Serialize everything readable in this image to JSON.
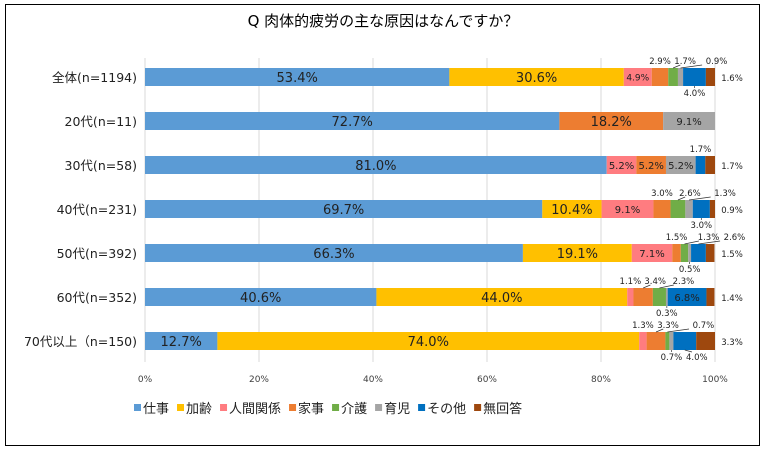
{
  "chart_data": {
    "type": "bar",
    "orientation": "horizontal",
    "stacked": "percent",
    "title": "Q 肉体的疲労の主な原因はなんですか？",
    "categories": [
      "全体(n=1194)",
      "20代(n=11)",
      "30代(n=58)",
      "40代(n=231)",
      "50代(n=392)",
      "60代(n=352)",
      "70代以上（n=150)"
    ],
    "xlim": [
      0,
      100
    ],
    "xticks": [
      "0%",
      "20%",
      "40%",
      "60%",
      "80%",
      "100%"
    ],
    "grid": true,
    "legend_position": "bottom",
    "series": [
      {
        "name": "仕事",
        "color": "#5b9bd5",
        "values": [
          53.4,
          72.7,
          81.0,
          69.7,
          66.3,
          40.6,
          12.7
        ]
      },
      {
        "name": "加齢",
        "color": "#ffc000",
        "values": [
          30.6,
          0,
          0,
          10.4,
          19.1,
          44.0,
          74.0
        ]
      },
      {
        "name": "人間関係",
        "color": "#ff7c80",
        "values": [
          4.9,
          0,
          5.2,
          9.1,
          7.1,
          1.1,
          1.3
        ]
      },
      {
        "name": "家事",
        "color": "#ed7d31",
        "values": [
          2.9,
          18.2,
          5.2,
          3.0,
          1.5,
          3.4,
          3.3
        ]
      },
      {
        "name": "介護",
        "color": "#70ad47",
        "values": [
          1.7,
          0,
          0,
          2.6,
          1.3,
          2.3,
          0.7
        ]
      },
      {
        "name": "育児",
        "color": "#a5a5a5",
        "values": [
          0.9,
          9.1,
          5.2,
          1.3,
          0.5,
          0.3,
          0.7
        ]
      },
      {
        "name": "その他",
        "color": "#0070c0",
        "values": [
          4.0,
          0,
          1.7,
          3.0,
          2.6,
          6.8,
          4.0
        ]
      },
      {
        "name": "無回答",
        "color": "#9e480e",
        "values": [
          1.6,
          0,
          1.7,
          0.9,
          1.5,
          1.4,
          3.3
        ]
      }
    ]
  }
}
